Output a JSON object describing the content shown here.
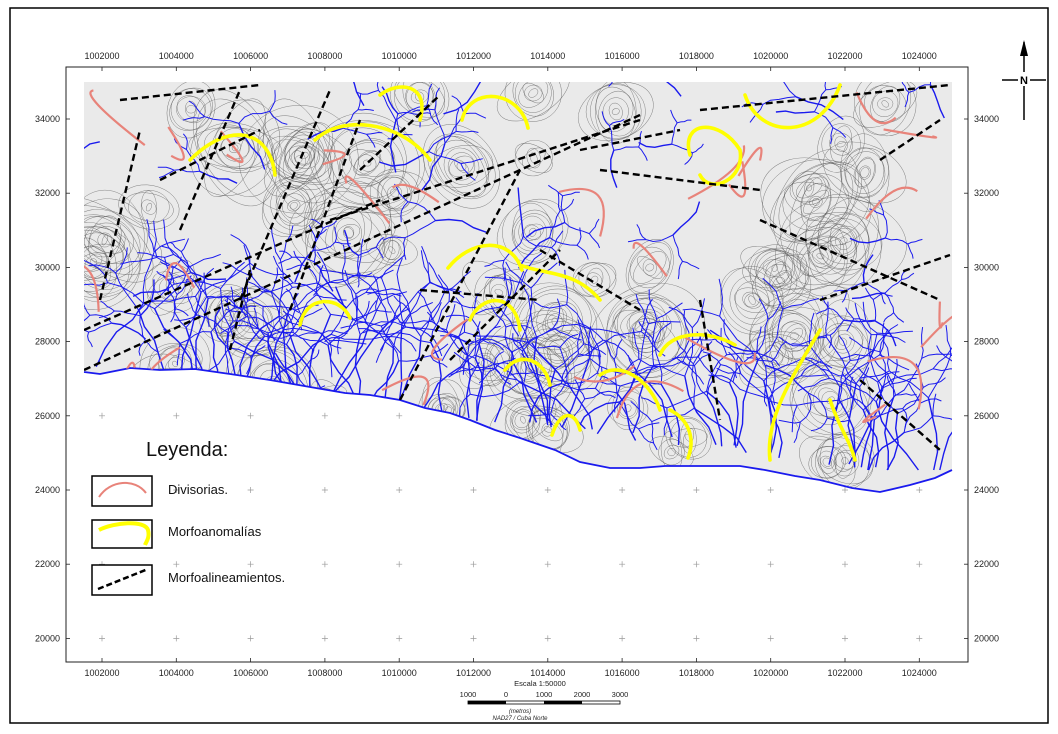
{
  "map": {
    "x_ticks": [
      "1002000",
      "1004000",
      "1006000",
      "1008000",
      "1010000",
      "1012000",
      "1014000",
      "1016000",
      "1018000",
      "1020000",
      "1022000",
      "1024000"
    ],
    "y_ticks": [
      "34000",
      "32000",
      "30000",
      "28000",
      "26000",
      "24000",
      "22000",
      "20000"
    ],
    "north_label": "N",
    "colors": {
      "divide": "#e8837a",
      "anomaly": "#ffff00",
      "lineament": "#000000",
      "drainage": "#1a1aee",
      "contour": "#555555"
    }
  },
  "legend": {
    "title": "Leyenda:",
    "items": [
      {
        "label": "Divisorias.",
        "symbol": "divide"
      },
      {
        "label": "Morfoanomalías",
        "symbol": "anomaly"
      },
      {
        "label": "Morfoalineamientos.",
        "symbol": "lineament"
      }
    ]
  },
  "scale": {
    "title": "Escala 1:50000",
    "ticks": [
      "1000",
      "0",
      "1000",
      "2000",
      "3000"
    ],
    "unit": "(metros)",
    "datum": "NAD27 / Cuba Norte"
  }
}
